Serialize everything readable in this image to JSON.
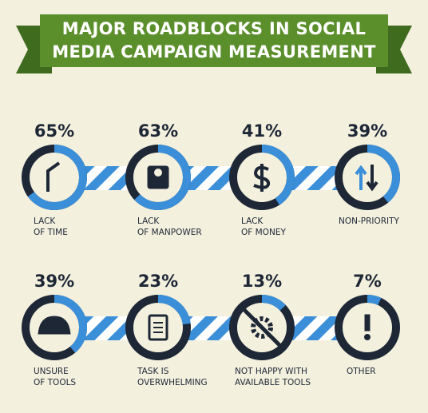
{
  "chart_data": {
    "type": "ring",
    "title": "MAJOR ROADBLOCKS IN SOCIAL\nMEDIA CAMPAIGN MEASUREMENT",
    "categories": [
      "LACK\nOF TIME",
      "LACK\nOF MANPOWER",
      "LACK\nOF MONEY",
      "NON-PRIORITY",
      "UNSURE\nOF TOOLS",
      "TASK IS\nOVERWHELMING",
      "NOT HAPPY WITH\nAVAILABLE TOOLS",
      "OTHER"
    ],
    "values": [
      65,
      63,
      41,
      39,
      39,
      23,
      13,
      7
    ],
    "value_labels": [
      "65%",
      "63%",
      "41%",
      "39%",
      "39%",
      "23%",
      "13%",
      "7%"
    ],
    "color": "#3b8fd8"
  }
}
